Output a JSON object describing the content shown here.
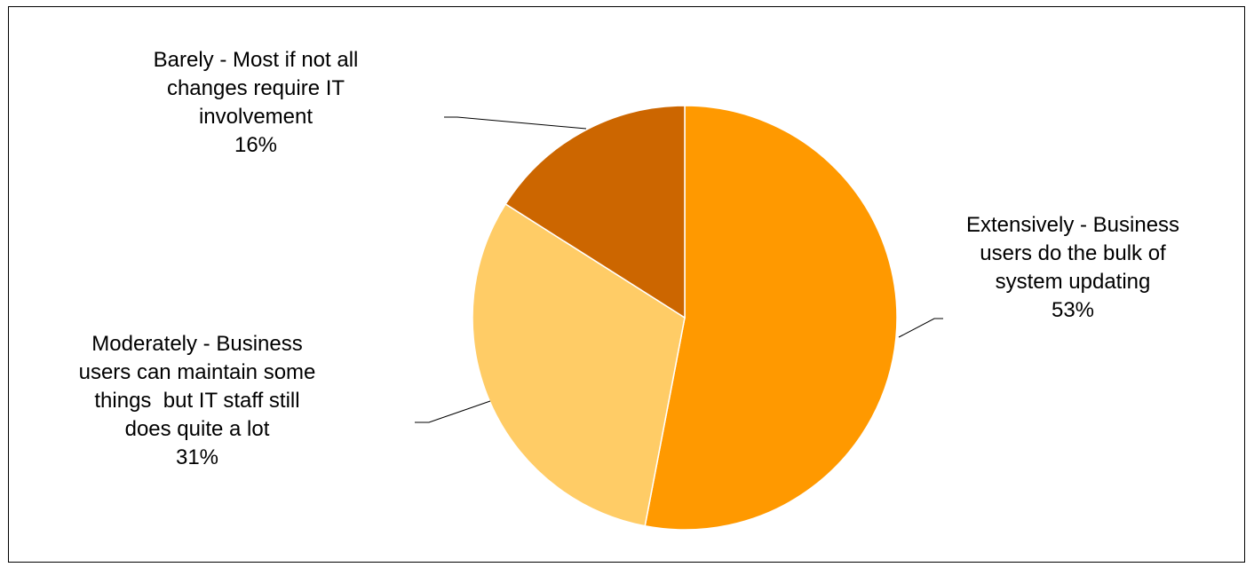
{
  "chart_data": {
    "type": "pie",
    "title": "",
    "slices": [
      {
        "name": "Extensively - Business users do the bulk of system updating",
        "label_lines": [
          "Extensively - Business",
          "users do the bulk of",
          "system updating"
        ],
        "value": 53,
        "percent_label": "53%",
        "color": "#ff9900"
      },
      {
        "name": "Moderately - Business users can maintain some things  but IT staff still does quite a lot",
        "label_lines": [
          "Moderately - Business",
          "users can maintain some",
          "things  but IT staff still",
          "does quite a lot"
        ],
        "value": 31,
        "percent_label": "31%",
        "color": "#ffcc66"
      },
      {
        "name": "Barely - Most if not all changes require IT involvement",
        "label_lines": [
          "Barely - Most if not all",
          "changes require IT",
          "involvement"
        ],
        "value": 16,
        "percent_label": "16%",
        "color": "#cc6600"
      }
    ],
    "legend": "none"
  }
}
